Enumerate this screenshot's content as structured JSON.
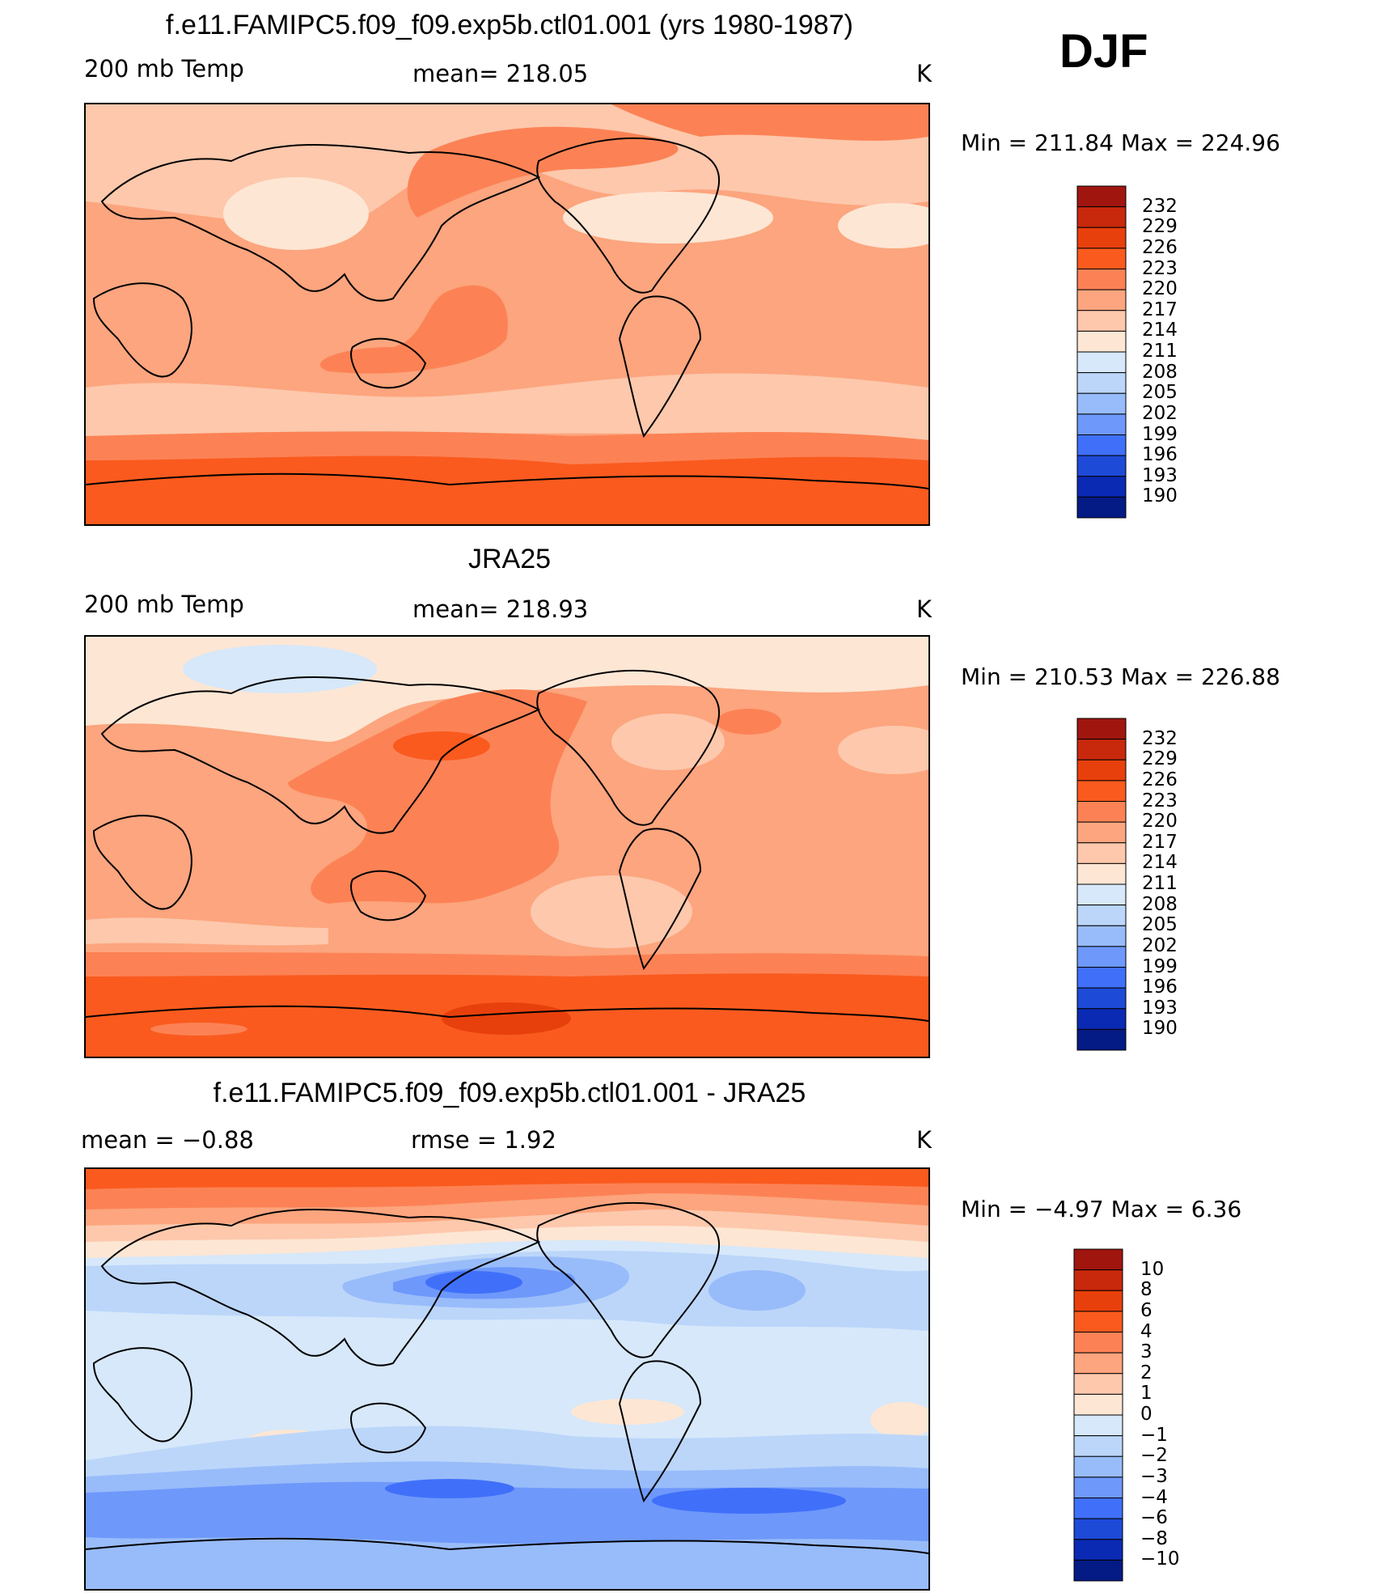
{
  "season": "DJF",
  "panels": [
    {
      "title": "f.e11.FAMIPC5.f09_f09.exp5b.ctl01.001 (yrs 1980-1987)",
      "left_label": "200 mb Temp",
      "center_label": "mean=  218.05",
      "units": "K",
      "minmax": "Min  =  211.84  Max  =  224.96",
      "colorbar": {
        "levels": [
          "232",
          "229",
          "226",
          "223",
          "220",
          "217",
          "214",
          "211",
          "208",
          "205",
          "202",
          "199",
          "196",
          "193",
          "190"
        ],
        "colors": [
          "#a0160f",
          "#c8280c",
          "#e8400c",
          "#fa5a1e",
          "#fc8255",
          "#fca57e",
          "#fdc8ac",
          "#fde6d4",
          "#d6e8fa",
          "#bcd6fa",
          "#98bcfa",
          "#6e98fa",
          "#4070fa",
          "#1e4ad8",
          "#0a2ab4",
          "#041a84"
        ]
      }
    },
    {
      "title": "JRA25",
      "left_label": "200 mb Temp",
      "center_label": "mean=  218.93",
      "units": "K",
      "minmax": "Min  =  210.53  Max  =  226.88",
      "colorbar": {
        "levels": [
          "232",
          "229",
          "226",
          "223",
          "220",
          "217",
          "214",
          "211",
          "208",
          "205",
          "202",
          "199",
          "196",
          "193",
          "190"
        ],
        "colors": [
          "#a0160f",
          "#c8280c",
          "#e8400c",
          "#fa5a1e",
          "#fc8255",
          "#fca57e",
          "#fdc8ac",
          "#fde6d4",
          "#d6e8fa",
          "#bcd6fa",
          "#98bcfa",
          "#6e98fa",
          "#4070fa",
          "#1e4ad8",
          "#0a2ab4",
          "#041a84"
        ]
      }
    },
    {
      "title": "f.e11.FAMIPC5.f09_f09.exp5b.ctl01.001 - JRA25",
      "left_label": "mean =    −0.88",
      "center_label": "rmse =     1.92",
      "units": "K",
      "minmax": "Min  =    −4.97  Max  =     6.36",
      "colorbar": {
        "levels": [
          "10",
          "8",
          "6",
          "4",
          "3",
          "2",
          "1",
          "0",
          "−1",
          "−2",
          "−3",
          "−4",
          "−6",
          "−8",
          "−10"
        ],
        "colors": [
          "#a0160f",
          "#c8280c",
          "#e8400c",
          "#fa5a1e",
          "#fc8255",
          "#fca57e",
          "#fdc8ac",
          "#fde6d4",
          "#d6e8fa",
          "#bcd6fa",
          "#98bcfa",
          "#6e98fa",
          "#4070fa",
          "#1e4ad8",
          "#0a2ab4",
          "#041a84"
        ]
      }
    }
  ]
}
